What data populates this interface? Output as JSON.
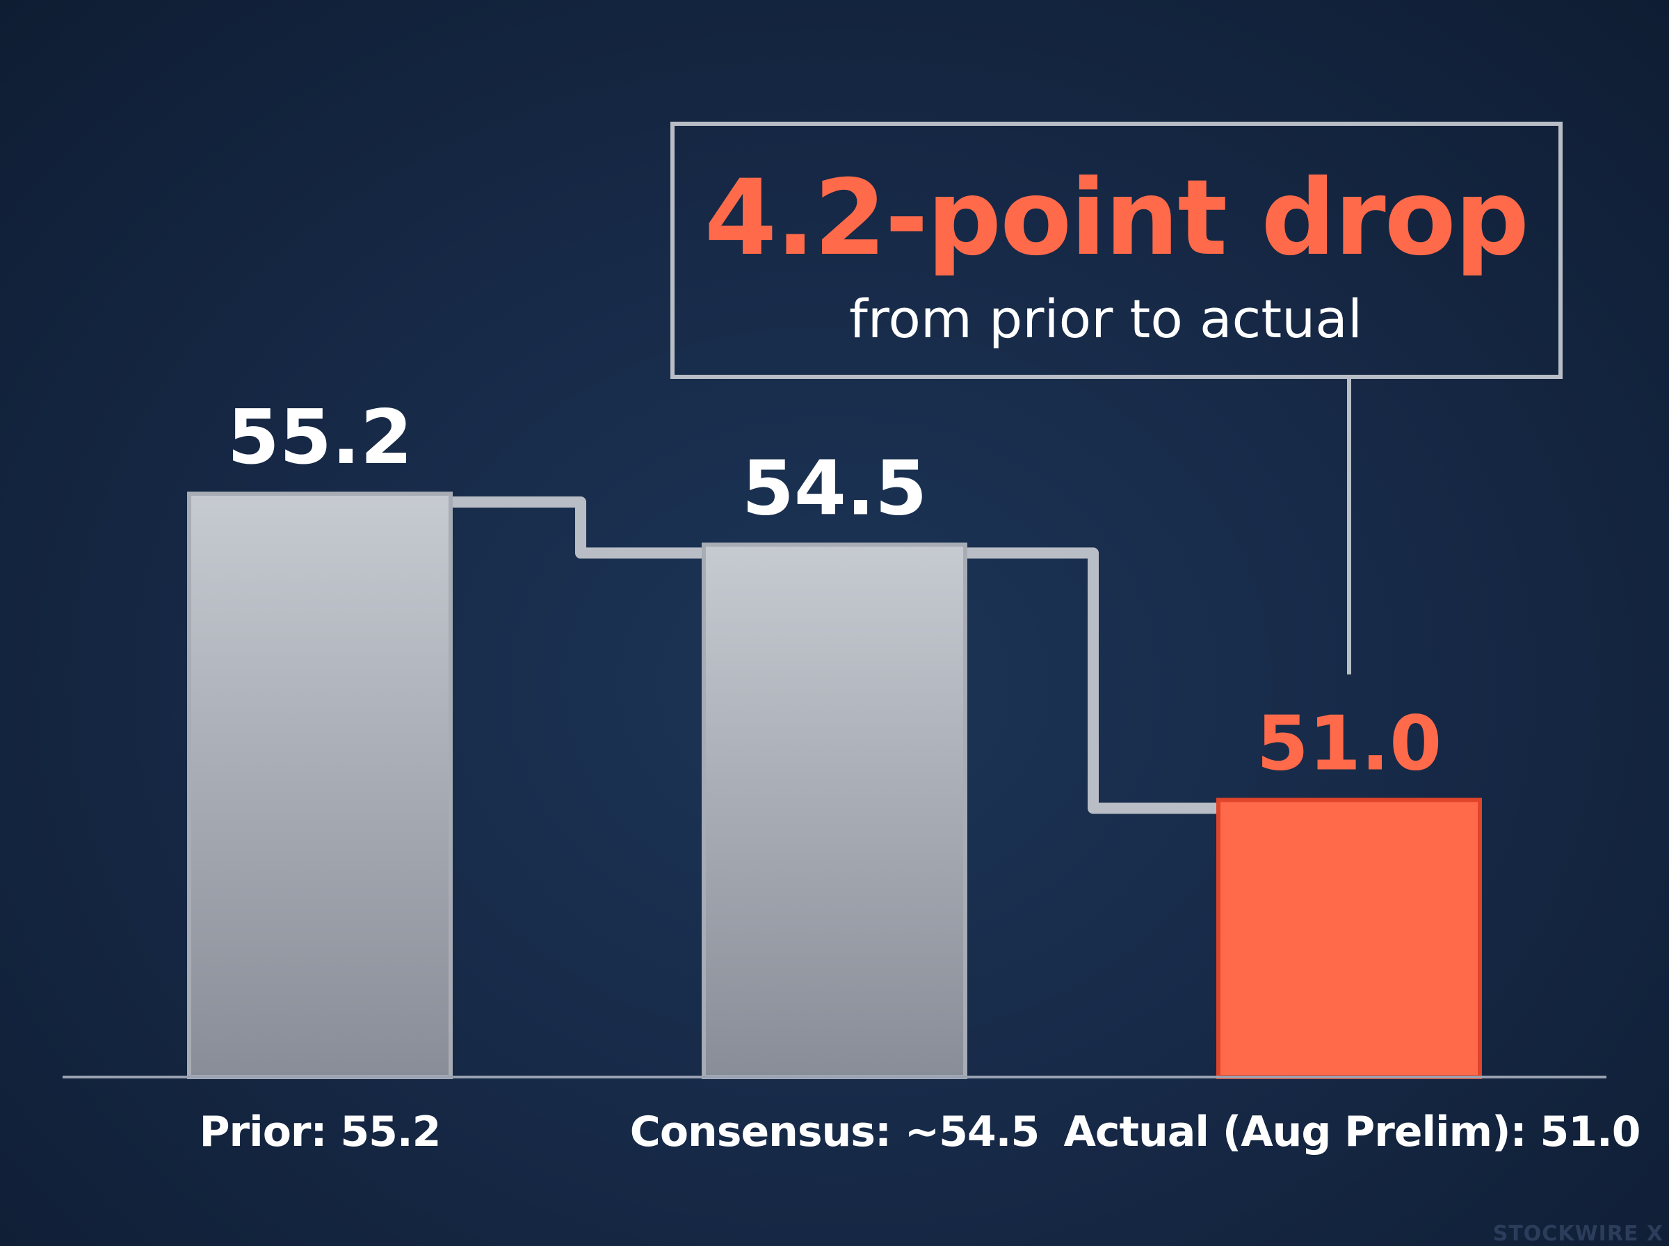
{
  "chart_data": {
    "type": "bar",
    "categories": [
      "Prior: 55.2",
      "Consensus: ~54.5",
      "Actual (Aug Prelim): 51.0"
    ],
    "values": [
      55.2,
      54.5,
      51.0
    ],
    "value_labels": [
      "55.2",
      "54.5",
      "51.0"
    ],
    "highlight_index": 2,
    "ylim": [
      47.2,
      55.2
    ],
    "annotation": {
      "headline": "4.2-point drop",
      "subtext": "from prior to actual"
    },
    "watermark": "STOCKWIRE X"
  },
  "colors": {
    "background": "#172a48",
    "bar_gray_top": "#c4c8cf",
    "bar_gray_bottom": "#8a8f99",
    "bar_highlight": "#ff6a4a",
    "accent": "#ff6a4a",
    "connector": "#b9bec6",
    "axis": "#9aa3b3"
  }
}
